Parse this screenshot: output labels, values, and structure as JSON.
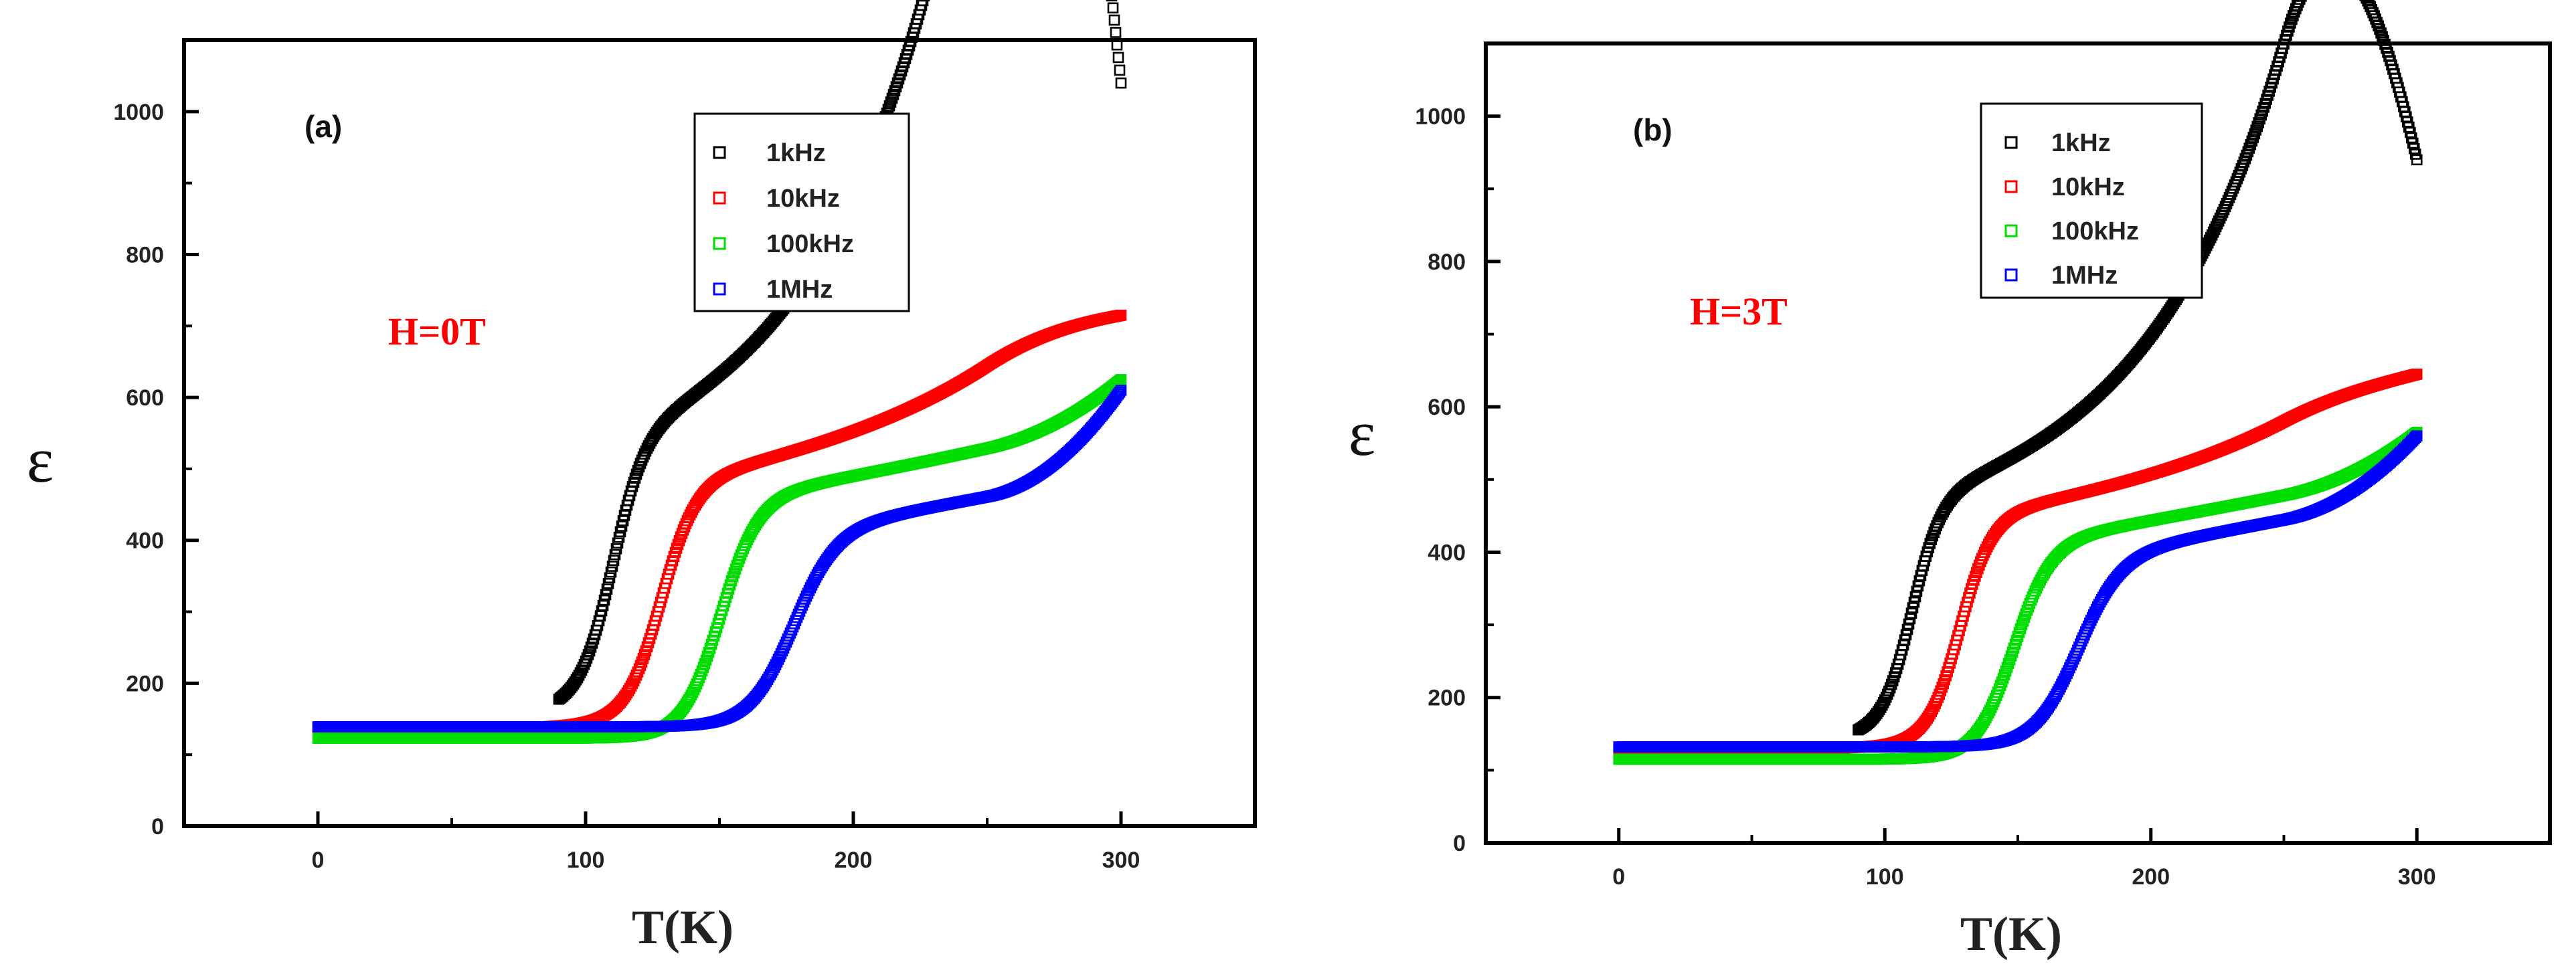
{
  "chart_data": [
    {
      "type": "scatter",
      "panel_label": "(a)",
      "annotation": "H=0T",
      "annotation_color": "#ff0000",
      "xlabel": "T(K)",
      "ylabel": "ε",
      "xlim": [
        -50,
        350
      ],
      "ylim": [
        0,
        1100
      ],
      "xticks": [
        0,
        100,
        200,
        300
      ],
      "yticks": [
        0,
        200,
        400,
        600,
        800,
        1000
      ],
      "legend_position": "top-right",
      "series": [
        {
          "name": "1kHz",
          "color": "#000000",
          "low": 140,
          "high": 500,
          "tc": 110,
          "w": 6,
          "hi_lin": 0.45,
          "hi_exp_a": 10,
          "hi_exp_t": 30,
          "hi_exp_k": 0.021,
          "x_start": 90,
          "end_value": 1040
        },
        {
          "name": "10kHz",
          "color": "#ff0000",
          "low": 138,
          "high": 470,
          "tc": 128,
          "w": 6.5,
          "hi_lin": 0.5,
          "hi_exp_a": 8,
          "hi_exp_t": 80,
          "hi_exp_k": 0.016,
          "x_start": 0,
          "end_value": 715
        },
        {
          "name": "100kHz",
          "color": "#00dd00",
          "low": 123,
          "high": 455,
          "tc": 150,
          "w": 7,
          "hi_lin": 0.6,
          "hi_exp_a": 5,
          "hi_exp_t": 140,
          "hi_exp_k": 0.012,
          "x_start": 0,
          "end_value": 625
        },
        {
          "name": "1MHz",
          "color": "#0000ff",
          "low": 139,
          "high": 410,
          "tc": 177,
          "w": 8,
          "hi_lin": 0.7,
          "hi_exp_a": 0,
          "hi_exp_t": 0,
          "hi_exp_k": 0,
          "x_start": 0,
          "end_value": 610
        }
      ]
    },
    {
      "type": "scatter",
      "panel_label": "(b)",
      "annotation": "H=3T",
      "annotation_color": "#ff0000",
      "xlabel": "T(K)",
      "ylabel": "ε",
      "xlim": [
        -50,
        350
      ],
      "ylim": [
        0,
        1100
      ],
      "xticks": [
        0,
        100,
        200,
        300
      ],
      "yticks": [
        0,
        200,
        400,
        600,
        800,
        1000
      ],
      "legend_position": "top-right",
      "series": [
        {
          "name": "1kHz",
          "color": "#000000",
          "low": 132,
          "high": 445,
          "tc": 110,
          "w": 5.5,
          "hi_lin": 0.45,
          "hi_exp_a": 9,
          "hi_exp_t": 40,
          "hi_exp_k": 0.02,
          "x_start": 90,
          "end_value": 940
        },
        {
          "name": "10kHz",
          "color": "#ff0000",
          "low": 130,
          "high": 440,
          "tc": 128,
          "w": 6,
          "hi_lin": 0.45,
          "hi_exp_a": 6,
          "hi_exp_t": 80,
          "hi_exp_k": 0.016,
          "x_start": 0,
          "end_value": 645
        },
        {
          "name": "100kHz",
          "color": "#00dd00",
          "low": 115,
          "high": 410,
          "tc": 148,
          "w": 7,
          "hi_lin": 0.6,
          "hi_exp_a": 3,
          "hi_exp_t": 150,
          "hi_exp_k": 0.012,
          "x_start": 0,
          "end_value": 565
        },
        {
          "name": "1MHz",
          "color": "#0000ff",
          "low": 132,
          "high": 390,
          "tc": 172,
          "w": 8,
          "hi_lin": 0.7,
          "hi_exp_a": 0,
          "hi_exp_t": 0,
          "hi_exp_k": 0,
          "x_start": 0,
          "end_value": 560
        }
      ]
    }
  ]
}
